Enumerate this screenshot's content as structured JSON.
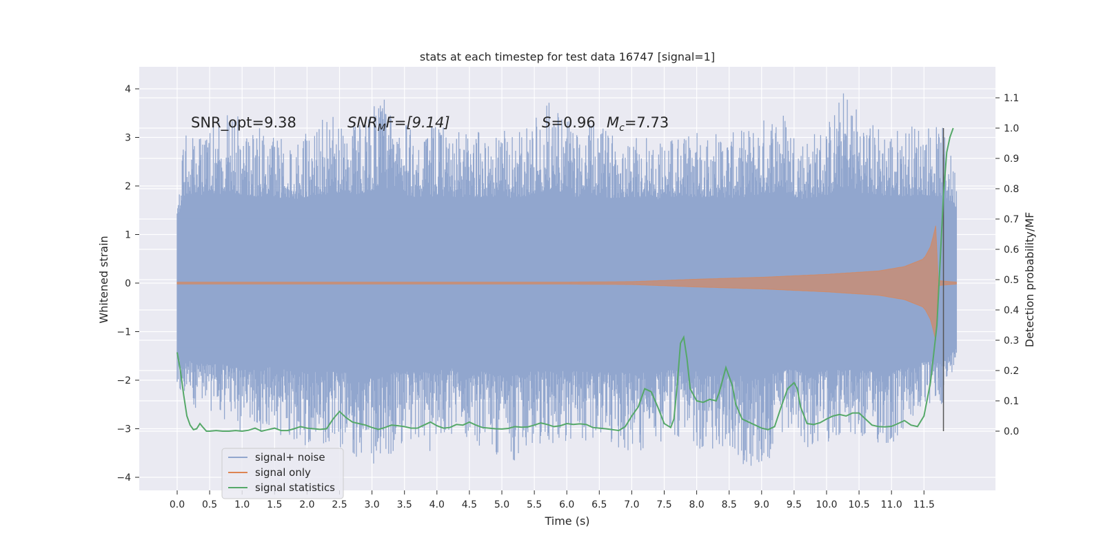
{
  "chart_data": {
    "type": "line",
    "title": "stats at each timestep for test data 16747 [signal=1]",
    "xlabel": "Time (s)",
    "ylabel": "Whitened strain",
    "ylabel_right": "Detection probability/MF",
    "xlim": [
      -0.58,
      12.6
    ],
    "ylim": [
      -4.4,
      4.45
    ],
    "ylim_right": [
      -0.2,
      1.2
    ],
    "x_ticks": [
      "0.0",
      "0.5",
      "1.0",
      "1.5",
      "2.0",
      "2.5",
      "3.0",
      "3.5",
      "4.0",
      "4.5",
      "5.0",
      "5.5",
      "6.0",
      "6.5",
      "7.0",
      "7.5",
      "8.0",
      "8.5",
      "9.0",
      "9.5",
      "10.0",
      "10.5",
      "11.0",
      "11.5"
    ],
    "y_ticks": [
      "4",
      "3",
      "2",
      "1",
      "0",
      "−1",
      "−2",
      "−3",
      "−4"
    ],
    "y_ticks_right": [
      "1.1",
      "1.0",
      "0.9",
      "0.8",
      "0.7",
      "0.6",
      "0.5",
      "0.4",
      "0.3",
      "0.2",
      "0.1",
      "0.0"
    ],
    "grid": true,
    "legend_placement": "lower-left",
    "annotations": {
      "snr_opt": "SNR_opt=9.38",
      "snr_mf_prefix": "SNR",
      "snr_mf_sub": "M",
      "snr_mf_rest": "F=[9.14]",
      "s_symbol": "S",
      "s_value": "=0.96",
      "mc_symbol": "M",
      "mc_sub": "c",
      "mc_value": "=7.73"
    },
    "colors": {
      "background": "#eaeaf2",
      "grid": "#ffffff",
      "signal_noise": "#91a6ce",
      "signal_only": "#dd8452",
      "signal_statistics": "#55a868",
      "marker_line": "#555555"
    },
    "series": [
      {
        "name": "signal+ noise",
        "type": "band",
        "x_range": [
          0.0,
          12.0
        ],
        "upper_envelope": [
          [
            0.0,
            1.5
          ],
          [
            0.1,
            3.2
          ],
          [
            0.5,
            3.4
          ],
          [
            0.9,
            3.5
          ],
          [
            1.1,
            3.2
          ],
          [
            1.4,
            3.2
          ],
          [
            1.8,
            3.0
          ],
          [
            2.1,
            3.3
          ],
          [
            2.5,
            3.5
          ],
          [
            2.8,
            3.4
          ],
          [
            3.15,
            3.95
          ],
          [
            3.5,
            3.3
          ],
          [
            3.8,
            3.1
          ],
          [
            4.0,
            3.3
          ],
          [
            4.4,
            3.1
          ],
          [
            4.8,
            3.2
          ],
          [
            5.2,
            3.1
          ],
          [
            5.5,
            3.4
          ],
          [
            5.8,
            3.85
          ],
          [
            6.1,
            3.2
          ],
          [
            6.4,
            3.3
          ],
          [
            6.7,
            3.1
          ],
          [
            7.0,
            3.2
          ],
          [
            7.4,
            3.0
          ],
          [
            7.8,
            3.1
          ],
          [
            8.2,
            3.2
          ],
          [
            8.6,
            3.1
          ],
          [
            8.9,
            3.3
          ],
          [
            9.3,
            3.7
          ],
          [
            9.6,
            3.0
          ],
          [
            10.0,
            3.3
          ],
          [
            10.3,
            4.1
          ],
          [
            10.6,
            3.4
          ],
          [
            11.0,
            3.2
          ],
          [
            11.5,
            3.35
          ],
          [
            11.8,
            3.2
          ],
          [
            12.0,
            2.3
          ]
        ],
        "lower_envelope": [
          [
            0.0,
            -2.1
          ],
          [
            0.3,
            -2.7
          ],
          [
            0.7,
            -2.8
          ],
          [
            1.1,
            -3.3
          ],
          [
            1.4,
            -3.0
          ],
          [
            1.8,
            -3.3
          ],
          [
            2.1,
            -3.4
          ],
          [
            2.5,
            -3.4
          ],
          [
            3.0,
            -3.85
          ],
          [
            3.5,
            -3.3
          ],
          [
            3.9,
            -3.5
          ],
          [
            4.2,
            -3.1
          ],
          [
            4.6,
            -3.3
          ],
          [
            5.1,
            -3.85
          ],
          [
            5.4,
            -3.3
          ],
          [
            5.8,
            -3.4
          ],
          [
            6.1,
            -3.3
          ],
          [
            6.5,
            -3.3
          ],
          [
            6.8,
            -3.45
          ],
          [
            7.3,
            -3.5
          ],
          [
            7.7,
            -3.2
          ],
          [
            8.2,
            -3.5
          ],
          [
            8.6,
            -3.7
          ],
          [
            9.0,
            -3.9
          ],
          [
            9.4,
            -3.2
          ],
          [
            9.8,
            -3.5
          ],
          [
            10.1,
            -3.2
          ],
          [
            10.5,
            -3.3
          ],
          [
            11.0,
            -3.4
          ],
          [
            11.5,
            -2.6
          ],
          [
            11.8,
            -2.5
          ],
          [
            12.0,
            -1.5
          ]
        ]
      },
      {
        "name": "signal only",
        "type": "chirp",
        "amplitude": [
          [
            0.0,
            0.02
          ],
          [
            6.0,
            0.02
          ],
          [
            7.0,
            0.03
          ],
          [
            8.0,
            0.08
          ],
          [
            9.0,
            0.12
          ],
          [
            10.0,
            0.18
          ],
          [
            10.8,
            0.25
          ],
          [
            11.2,
            0.34
          ],
          [
            11.5,
            0.5
          ],
          [
            11.6,
            0.75
          ],
          [
            11.65,
            1.0
          ],
          [
            11.7,
            1.3
          ],
          [
            11.72,
            0.05
          ],
          [
            12.0,
            0.02
          ]
        ]
      },
      {
        "name": "signal statistics",
        "type": "line",
        "points": [
          [
            0.0,
            0.26
          ],
          [
            0.05,
            0.2
          ],
          [
            0.1,
            0.12
          ],
          [
            0.15,
            0.05
          ],
          [
            0.2,
            0.02
          ],
          [
            0.25,
            0.005
          ],
          [
            0.3,
            0.008
          ],
          [
            0.35,
            0.025
          ],
          [
            0.4,
            0.012
          ],
          [
            0.45,
            0.0
          ],
          [
            0.5,
            0.0
          ],
          [
            0.6,
            0.002
          ],
          [
            0.7,
            0.0
          ],
          [
            0.8,
            0.0
          ],
          [
            0.9,
            0.002
          ],
          [
            1.0,
            0.0
          ],
          [
            1.1,
            0.003
          ],
          [
            1.2,
            0.01
          ],
          [
            1.3,
            0.0
          ],
          [
            1.4,
            0.005
          ],
          [
            1.5,
            0.01
          ],
          [
            1.6,
            0.002
          ],
          [
            1.7,
            0.002
          ],
          [
            1.8,
            0.008
          ],
          [
            1.9,
            0.015
          ],
          [
            2.0,
            0.01
          ],
          [
            2.1,
            0.008
          ],
          [
            2.2,
            0.006
          ],
          [
            2.3,
            0.008
          ],
          [
            2.4,
            0.04
          ],
          [
            2.5,
            0.065
          ],
          [
            2.6,
            0.045
          ],
          [
            2.7,
            0.03
          ],
          [
            2.8,
            0.025
          ],
          [
            2.9,
            0.02
          ],
          [
            3.0,
            0.012
          ],
          [
            3.1,
            0.006
          ],
          [
            3.2,
            0.012
          ],
          [
            3.3,
            0.02
          ],
          [
            3.4,
            0.018
          ],
          [
            3.5,
            0.015
          ],
          [
            3.6,
            0.01
          ],
          [
            3.7,
            0.01
          ],
          [
            3.8,
            0.02
          ],
          [
            3.9,
            0.03
          ],
          [
            4.0,
            0.018
          ],
          [
            4.1,
            0.01
          ],
          [
            4.2,
            0.012
          ],
          [
            4.3,
            0.022
          ],
          [
            4.4,
            0.02
          ],
          [
            4.5,
            0.03
          ],
          [
            4.6,
            0.02
          ],
          [
            4.7,
            0.012
          ],
          [
            4.8,
            0.01
          ],
          [
            4.9,
            0.008
          ],
          [
            5.0,
            0.007
          ],
          [
            5.1,
            0.009
          ],
          [
            5.2,
            0.015
          ],
          [
            5.3,
            0.013
          ],
          [
            5.4,
            0.014
          ],
          [
            5.5,
            0.02
          ],
          [
            5.6,
            0.027
          ],
          [
            5.7,
            0.022
          ],
          [
            5.8,
            0.015
          ],
          [
            5.9,
            0.018
          ],
          [
            6.0,
            0.025
          ],
          [
            6.1,
            0.022
          ],
          [
            6.2,
            0.024
          ],
          [
            6.3,
            0.022
          ],
          [
            6.4,
            0.012
          ],
          [
            6.5,
            0.01
          ],
          [
            6.6,
            0.008
          ],
          [
            6.7,
            0.005
          ],
          [
            6.8,
            0.002
          ],
          [
            6.9,
            0.015
          ],
          [
            7.0,
            0.05
          ],
          [
            7.1,
            0.08
          ],
          [
            7.2,
            0.14
          ],
          [
            7.3,
            0.13
          ],
          [
            7.4,
            0.08
          ],
          [
            7.5,
            0.025
          ],
          [
            7.6,
            0.012
          ],
          [
            7.65,
            0.04
          ],
          [
            7.7,
            0.15
          ],
          [
            7.75,
            0.29
          ],
          [
            7.8,
            0.31
          ],
          [
            7.85,
            0.24
          ],
          [
            7.9,
            0.14
          ],
          [
            8.0,
            0.1
          ],
          [
            8.1,
            0.095
          ],
          [
            8.2,
            0.105
          ],
          [
            8.3,
            0.1
          ],
          [
            8.35,
            0.13
          ],
          [
            8.45,
            0.21
          ],
          [
            8.55,
            0.15
          ],
          [
            8.6,
            0.09
          ],
          [
            8.7,
            0.04
          ],
          [
            8.8,
            0.03
          ],
          [
            8.9,
            0.02
          ],
          [
            9.0,
            0.01
          ],
          [
            9.1,
            0.005
          ],
          [
            9.2,
            0.015
          ],
          [
            9.3,
            0.08
          ],
          [
            9.4,
            0.14
          ],
          [
            9.5,
            0.16
          ],
          [
            9.55,
            0.14
          ],
          [
            9.6,
            0.08
          ],
          [
            9.7,
            0.025
          ],
          [
            9.8,
            0.022
          ],
          [
            9.9,
            0.028
          ],
          [
            10.0,
            0.04
          ],
          [
            10.1,
            0.05
          ],
          [
            10.2,
            0.055
          ],
          [
            10.3,
            0.05
          ],
          [
            10.4,
            0.06
          ],
          [
            10.5,
            0.06
          ],
          [
            10.6,
            0.04
          ],
          [
            10.7,
            0.02
          ],
          [
            10.8,
            0.015
          ],
          [
            10.9,
            0.014
          ],
          [
            11.0,
            0.016
          ],
          [
            11.1,
            0.025
          ],
          [
            11.2,
            0.035
          ],
          [
            11.3,
            0.02
          ],
          [
            11.4,
            0.015
          ],
          [
            11.5,
            0.05
          ],
          [
            11.6,
            0.16
          ],
          [
            11.7,
            0.35
          ],
          [
            11.8,
            0.78
          ],
          [
            11.85,
            0.92
          ],
          [
            11.9,
            0.97
          ],
          [
            11.95,
            1.0
          ]
        ]
      }
    ],
    "vertical_marker_x": 11.8,
    "vertical_marker_range": [
      0.0,
      1.0
    ]
  }
}
